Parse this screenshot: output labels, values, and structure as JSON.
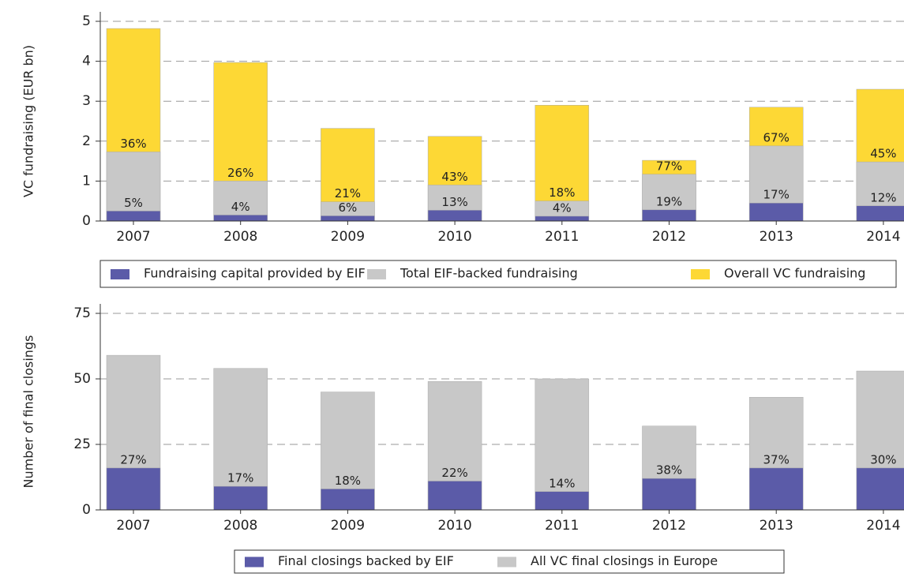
{
  "chart_data": [
    {
      "type": "bar",
      "y_label": "VC fundraising (EUR bn)",
      "categories": [
        "2007",
        "2008",
        "2009",
        "2010",
        "2011",
        "2012",
        "2013",
        "2014"
      ],
      "series": [
        {
          "name": "Fundraising capital provided by EIF",
          "color": "#5b5ba8",
          "values": [
            0.25,
            0.15,
            0.13,
            0.27,
            0.12,
            0.28,
            0.45,
            0.38
          ],
          "labels": [
            "5%",
            "4%",
            "6%",
            "13%",
            "4%",
            "19%",
            "17%",
            "12%"
          ]
        },
        {
          "name": "Total EIF-backed fundraising",
          "color": "#c8c8c8",
          "values": [
            1.73,
            1.0,
            0.48,
            0.9,
            0.5,
            1.17,
            1.88,
            1.48
          ],
          "labels": [
            "36%",
            "26%",
            "21%",
            "43%",
            "18%",
            "77%",
            "67%",
            "45%"
          ]
        },
        {
          "name": "Overall VC fundraising",
          "color": "#fdd835",
          "values": [
            4.82,
            3.97,
            2.32,
            2.12,
            2.9,
            1.52,
            2.85,
            3.3
          ]
        }
      ],
      "ylim": [
        0,
        5
      ],
      "yticks": [
        0,
        1,
        2,
        3,
        4,
        5
      ],
      "grid": true
    },
    {
      "type": "bar",
      "y_label": "Number of final closings",
      "categories": [
        "2007",
        "2008",
        "2009",
        "2010",
        "2011",
        "2012",
        "2013",
        "2014"
      ],
      "series": [
        {
          "name": "Final closings backed by EIF",
          "color": "#5b5ba8",
          "values": [
            16,
            9,
            8,
            11,
            7,
            12,
            16,
            16
          ],
          "labels": [
            "27%",
            "17%",
            "18%",
            "22%",
            "14%",
            "38%",
            "37%",
            "30%"
          ]
        },
        {
          "name": "All VC final closings in Europe",
          "color": "#c8c8c8",
          "values": [
            59,
            54,
            45,
            49,
            50,
            32,
            43,
            53
          ]
        }
      ],
      "ylim": [
        0,
        75
      ],
      "yticks": [
        0,
        25,
        50,
        75
      ],
      "grid": true
    }
  ]
}
